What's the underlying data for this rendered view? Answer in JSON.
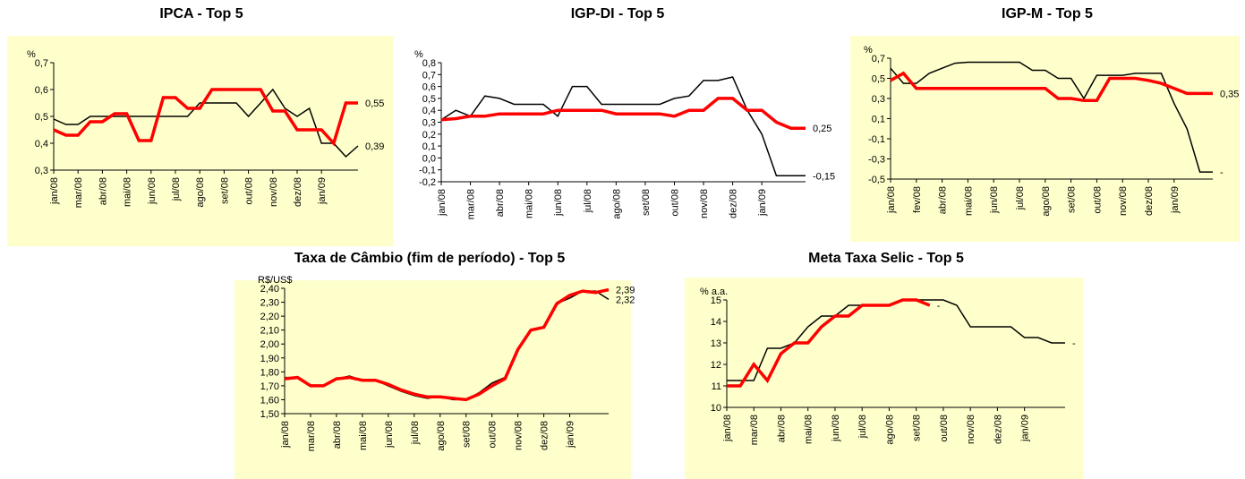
{
  "chart_data": [
    {
      "type": "line",
      "title": "IPCA - Top 5",
      "y_label": "%",
      "background": "#ffffcc",
      "categories": [
        "jan/08",
        null,
        "mar/08",
        null,
        "abr/08",
        null,
        "mai/08",
        null,
        "jun/08",
        null,
        "jul/08",
        null,
        "ago/08",
        null,
        "set/08",
        null,
        "out/08",
        null,
        "nov/08",
        null,
        "dez/08",
        null,
        "jan/09",
        null,
        null,
        null
      ],
      "ylim": [
        0.3,
        0.7
      ],
      "yticks": [
        {
          "value": 0.3,
          "label": "0,3"
        },
        {
          "value": 0.4,
          "label": "0,4"
        },
        {
          "value": 0.5,
          "label": "0,5"
        },
        {
          "value": 0.6,
          "label": "0,6"
        },
        {
          "value": 0.7,
          "label": "0,7"
        }
      ],
      "series": [
        {
          "color": "#000000",
          "width": 1.5,
          "values": [
            0.49,
            0.47,
            0.47,
            0.5,
            0.5,
            0.5,
            0.5,
            0.5,
            0.5,
            0.5,
            0.5,
            0.5,
            0.55,
            0.55,
            0.55,
            0.55,
            0.5,
            0.55,
            0.6,
            0.53,
            0.5,
            0.53,
            0.4,
            0.4,
            0.35,
            0.39
          ],
          "value_labels": [
            null,
            null,
            null,
            null,
            null,
            null,
            null,
            null,
            null,
            null,
            null,
            null,
            null,
            null,
            null,
            null,
            null,
            null,
            null,
            null,
            null,
            null,
            null,
            null,
            null,
            "0,39"
          ]
        },
        {
          "color": "#ff0000",
          "width": 3.5,
          "values": [
            0.45,
            0.43,
            0.43,
            0.48,
            0.48,
            0.51,
            0.51,
            0.41,
            0.41,
            0.57,
            0.57,
            0.53,
            0.53,
            0.6,
            0.6,
            0.6,
            0.6,
            0.6,
            0.52,
            0.52,
            0.45,
            0.45,
            0.45,
            0.4,
            0.55,
            0.55
          ],
          "value_labels": [
            null,
            null,
            null,
            null,
            null,
            null,
            null,
            null,
            null,
            null,
            null,
            null,
            null,
            null,
            null,
            null,
            null,
            null,
            null,
            null,
            null,
            null,
            null,
            null,
            null,
            "0,55"
          ]
        }
      ]
    },
    {
      "type": "line",
      "title": "IGP-DI - Top 5",
      "y_label": "%",
      "categories": [
        "jan/08",
        null,
        "mar/08",
        null,
        "abr/08",
        null,
        "mai/08",
        null,
        "jun/08",
        null,
        "jul/08",
        null,
        "ago/08",
        null,
        "set/08",
        null,
        "out/08",
        null,
        "nov/08",
        null,
        "dez/08",
        null,
        "jan/09",
        null,
        null,
        null
      ],
      "ylim": [
        -0.2,
        0.8
      ],
      "yticks": [
        {
          "value": -0.2,
          "label": "-0,2"
        },
        {
          "value": -0.1,
          "label": "-0,1"
        },
        {
          "value": 0,
          "label": "0,0"
        },
        {
          "value": 0.1,
          "label": "0,1"
        },
        {
          "value": 0.2,
          "label": "0,2"
        },
        {
          "value": 0.3,
          "label": "0,3"
        },
        {
          "value": 0.4,
          "label": "0,4"
        },
        {
          "value": 0.5,
          "label": "0,5"
        },
        {
          "value": 0.6,
          "label": "0,6"
        },
        {
          "value": 0.7,
          "label": "0,7"
        },
        {
          "value": 0.8,
          "label": "0,8"
        }
      ],
      "series": [
        {
          "color": "#000000",
          "width": 1.5,
          "values": [
            0.32,
            0.4,
            0.35,
            0.52,
            0.5,
            0.45,
            0.45,
            0.45,
            0.35,
            0.6,
            0.6,
            0.45,
            0.45,
            0.45,
            0.45,
            0.45,
            0.5,
            0.52,
            0.65,
            0.65,
            0.68,
            0.4,
            0.2,
            -0.15,
            -0.15,
            -0.15
          ],
          "value_labels": [
            null,
            null,
            null,
            null,
            null,
            null,
            null,
            null,
            null,
            null,
            null,
            null,
            null,
            null,
            null,
            null,
            null,
            null,
            null,
            null,
            null,
            null,
            null,
            null,
            null,
            "-0,15"
          ]
        },
        {
          "color": "#ff0000",
          "width": 3.5,
          "values": [
            0.32,
            0.33,
            0.35,
            0.35,
            0.37,
            0.37,
            0.37,
            0.37,
            0.4,
            0.4,
            0.4,
            0.4,
            0.37,
            0.37,
            0.37,
            0.37,
            0.35,
            0.4,
            0.4,
            0.5,
            0.5,
            0.4,
            0.4,
            0.3,
            0.25,
            0.25
          ],
          "value_labels": [
            null,
            null,
            null,
            null,
            null,
            null,
            null,
            null,
            null,
            null,
            null,
            null,
            null,
            null,
            null,
            null,
            null,
            null,
            null,
            null,
            null,
            null,
            null,
            null,
            null,
            "0,25"
          ]
        }
      ]
    },
    {
      "type": "line",
      "title": "IGP-M - Top 5",
      "y_label": "%",
      "background": "#ffffcc",
      "categories": [
        "jan/08",
        null,
        "fev/08",
        null,
        "abr/08",
        null,
        "mai/08",
        null,
        "jun/08",
        null,
        "jul/08",
        null,
        "ago/08",
        null,
        "set/08",
        null,
        "out/08",
        null,
        "nov/08",
        null,
        "dez/08",
        null,
        "jan/09",
        null,
        null,
        null
      ],
      "ylim": [
        -0.5,
        0.7
      ],
      "yticks": [
        {
          "value": -0.5,
          "label": "-0,5"
        },
        {
          "value": -0.3,
          "label": "-0,3"
        },
        {
          "value": -0.1,
          "label": "-0,1"
        },
        {
          "value": 0.1,
          "label": "0,1"
        },
        {
          "value": 0.3,
          "label": "0,3"
        },
        {
          "value": 0.5,
          "label": "0,5"
        },
        {
          "value": 0.7,
          "label": "0,7"
        }
      ],
      "series": [
        {
          "color": "#000000",
          "width": 1.5,
          "values": [
            0.6,
            0.45,
            0.45,
            0.55,
            0.6,
            0.65,
            0.66,
            0.66,
            0.66,
            0.66,
            0.66,
            0.58,
            0.58,
            0.5,
            0.5,
            0.3,
            0.53,
            0.53,
            0.53,
            0.55,
            0.55,
            0.55,
            0.25,
            0,
            -0.43,
            -0.43
          ],
          "value_labels": [
            null,
            null,
            null,
            null,
            null,
            null,
            null,
            null,
            null,
            null,
            null,
            null,
            null,
            null,
            null,
            null,
            null,
            null,
            null,
            null,
            null,
            null,
            null,
            null,
            null,
            "-"
          ]
        },
        {
          "color": "#ff0000",
          "width": 3.5,
          "values": [
            0.48,
            0.55,
            0.4,
            0.4,
            0.4,
            0.4,
            0.4,
            0.4,
            0.4,
            0.4,
            0.4,
            0.4,
            0.4,
            0.3,
            0.3,
            0.28,
            0.28,
            0.5,
            0.5,
            0.5,
            0.48,
            0.45,
            0.4,
            0.35,
            0.35,
            0.35
          ],
          "value_labels": [
            null,
            null,
            null,
            null,
            null,
            null,
            null,
            null,
            null,
            null,
            null,
            null,
            null,
            null,
            null,
            null,
            null,
            null,
            null,
            null,
            null,
            null,
            null,
            null,
            null,
            "0,35"
          ]
        }
      ]
    },
    {
      "type": "line",
      "title": "Taxa de Câmbio (fim de período) - Top 5",
      "y_label": "R$/US$",
      "background": "#ffffcc",
      "categories": [
        "jan/08",
        null,
        "mar/08",
        null,
        "abr/08",
        null,
        "mai/08",
        null,
        "jun/08",
        null,
        "jul/08",
        null,
        "ago/08",
        null,
        "set/08",
        null,
        "out/08",
        null,
        "nov/08",
        null,
        "dez/08",
        null,
        "jan/09",
        null,
        null,
        null
      ],
      "ylim": [
        1.5,
        2.4
      ],
      "yticks": [
        {
          "value": 1.5,
          "label": "1,50"
        },
        {
          "value": 1.6,
          "label": "1,60"
        },
        {
          "value": 1.7,
          "label": "1,70"
        },
        {
          "value": 1.8,
          "label": "1,80"
        },
        {
          "value": 1.9,
          "label": "1,90"
        },
        {
          "value": 2.0,
          "label": "2,00"
        },
        {
          "value": 2.1,
          "label": "2,10"
        },
        {
          "value": 2.2,
          "label": "2,20"
        },
        {
          "value": 2.3,
          "label": "2,30"
        },
        {
          "value": 2.4,
          "label": "2,40"
        }
      ],
      "series": [
        {
          "color": "#000000",
          "width": 1.5,
          "values": [
            1.76,
            1.76,
            1.7,
            1.7,
            1.75,
            1.77,
            1.74,
            1.74,
            1.7,
            1.66,
            1.63,
            1.61,
            1.62,
            1.6,
            1.6,
            1.65,
            1.72,
            1.76,
            1.96,
            2.1,
            2.12,
            2.29,
            2.33,
            2.38,
            2.38,
            2.32
          ],
          "value_labels": [
            null,
            null,
            null,
            null,
            null,
            null,
            null,
            null,
            null,
            null,
            null,
            null,
            null,
            null,
            null,
            null,
            null,
            null,
            null,
            null,
            null,
            null,
            null,
            null,
            null,
            "2,32"
          ]
        },
        {
          "color": "#ff0000",
          "width": 3.5,
          "values": [
            1.75,
            1.76,
            1.7,
            1.7,
            1.75,
            1.76,
            1.74,
            1.74,
            1.71,
            1.67,
            1.64,
            1.62,
            1.62,
            1.61,
            1.6,
            1.64,
            1.7,
            1.75,
            1.96,
            2.1,
            2.12,
            2.29,
            2.35,
            2.38,
            2.37,
            2.39
          ],
          "value_labels": [
            null,
            null,
            null,
            null,
            null,
            null,
            null,
            null,
            null,
            null,
            null,
            null,
            null,
            null,
            null,
            null,
            null,
            null,
            null,
            null,
            null,
            null,
            null,
            null,
            null,
            "2,39"
          ]
        }
      ]
    },
    {
      "type": "line",
      "title": "Meta Taxa Selic - Top 5",
      "y_label": "% a.a.",
      "background": "#ffffcc",
      "categories": [
        "jan/08",
        null,
        "mar/08",
        null,
        "abr/08",
        null,
        "mai/08",
        null,
        "jun/08",
        null,
        "jul/08",
        null,
        "ago/08",
        null,
        "set/08",
        null,
        "out/08",
        null,
        "nov/08",
        null,
        "dez/08",
        null,
        "jan/09",
        null,
        null,
        null
      ],
      "ylim": [
        10,
        15
      ],
      "yticks": [
        10,
        11,
        12,
        13,
        14,
        15
      ],
      "series": [
        {
          "color": "#000000",
          "width": 1.5,
          "values": [
            11.25,
            11.25,
            11.25,
            12.75,
            12.75,
            13,
            13.75,
            14.25,
            14.25,
            14.75,
            14.75,
            14.75,
            14.75,
            15,
            15,
            15,
            15,
            14.75,
            13.75,
            13.75,
            13.75,
            13.75,
            13.25,
            13.25,
            13,
            13
          ],
          "value_labels": [
            null,
            null,
            null,
            null,
            null,
            null,
            null,
            null,
            null,
            null,
            null,
            null,
            null,
            null,
            null,
            null,
            null,
            null,
            null,
            null,
            null,
            null,
            null,
            null,
            null,
            "-"
          ]
        },
        {
          "color": "#ff0000",
          "width": 3.5,
          "values": [
            11,
            11,
            12,
            11.25,
            12.5,
            13,
            13,
            13.75,
            14.25,
            14.25,
            14.75,
            14.75,
            14.75,
            15,
            15,
            14.75,
            null,
            null,
            null,
            null,
            null,
            null,
            null,
            null,
            null,
            null
          ],
          "value_labels": [
            null,
            null,
            null,
            null,
            null,
            null,
            null,
            null,
            null,
            null,
            null,
            null,
            null,
            null,
            null,
            "-",
            null,
            null,
            null,
            null,
            null,
            null,
            null,
            null,
            null,
            null
          ]
        }
      ]
    }
  ]
}
